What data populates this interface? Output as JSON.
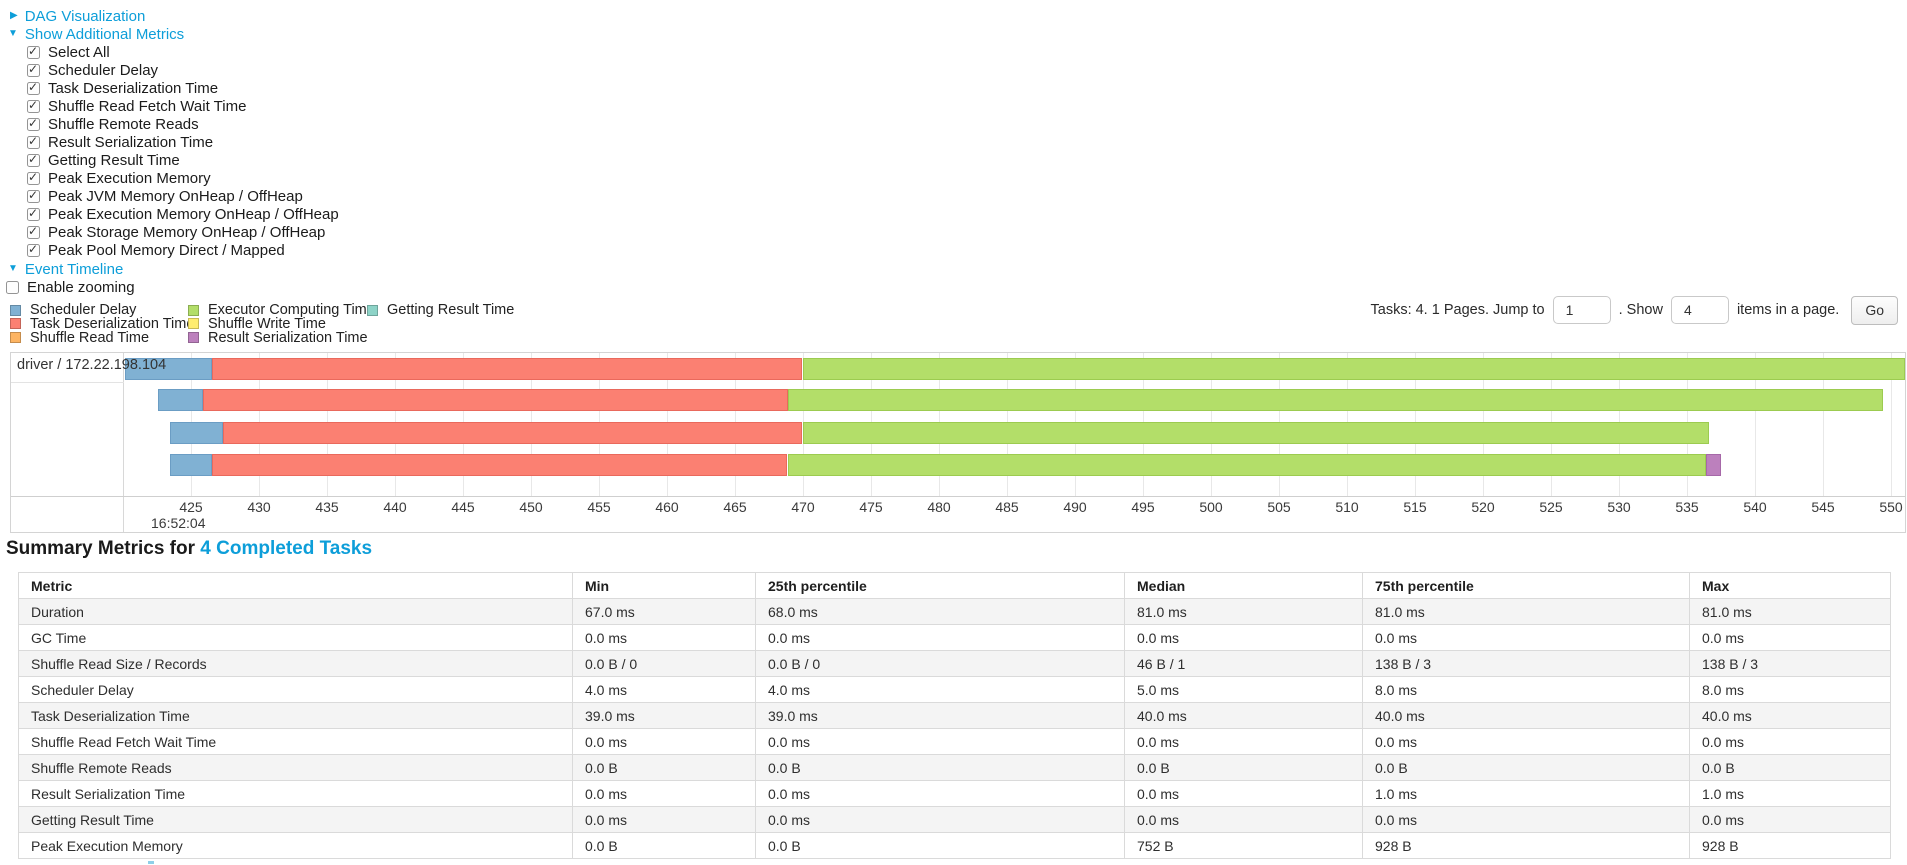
{
  "controls": {
    "dag": {
      "label": "DAG Visualization",
      "arrow": "▶"
    },
    "metrics": {
      "label": "Show Additional Metrics",
      "arrow": "▼",
      "items": [
        {
          "label": "Select All",
          "checked": true
        },
        {
          "label": "Scheduler Delay",
          "checked": true
        },
        {
          "label": "Task Deserialization Time",
          "checked": true
        },
        {
          "label": "Shuffle Read Fetch Wait Time",
          "checked": true
        },
        {
          "label": "Shuffle Remote Reads",
          "checked": true
        },
        {
          "label": "Result Serialization Time",
          "checked": true
        },
        {
          "label": "Getting Result Time",
          "checked": true
        },
        {
          "label": "Peak Execution Memory",
          "checked": true
        },
        {
          "label": "Peak JVM Memory OnHeap / OffHeap",
          "checked": true
        },
        {
          "label": "Peak Execution Memory OnHeap / OffHeap",
          "checked": true
        },
        {
          "label": "Peak Storage Memory OnHeap / OffHeap",
          "checked": true
        },
        {
          "label": "Peak Pool Memory Direct / Mapped",
          "checked": true
        }
      ]
    },
    "event_timeline": {
      "label": "Event Timeline",
      "arrow": "▼"
    },
    "enable_zooming": {
      "label": "Enable zooming",
      "checked": false
    }
  },
  "legend": {
    "columns": [
      {
        "items": [
          {
            "type": "scheduler_delay",
            "label": "Scheduler Delay"
          },
          {
            "type": "task_deserialization",
            "label": "Task Deserialization Time"
          },
          {
            "type": "shuffle_read",
            "label": "Shuffle Read Time"
          }
        ]
      },
      {
        "items": [
          {
            "type": "executor_computing",
            "label": "Executor Computing Time"
          },
          {
            "type": "shuffle_write",
            "label": "Shuffle Write Time"
          },
          {
            "type": "result_serialization",
            "label": "Result Serialization Time"
          }
        ]
      },
      {
        "items": [
          {
            "type": "getting_result",
            "label": "Getting Result Time"
          }
        ]
      }
    ]
  },
  "pagination": {
    "prefix": "Tasks: 4. 1 Pages. Jump to",
    "jump_value": "1",
    "mid": ". Show",
    "show_value": "4",
    "suffix": "items in a page.",
    "go_label": "Go"
  },
  "timeline": {
    "group_label": "driver / 172.22.198.104",
    "axis": {
      "min": 420.1,
      "max": 550.9,
      "tick_start": 425,
      "tick_end": 550,
      "tick_step": 5,
      "major_label": "16:52:04"
    },
    "colors": {
      "scheduler_delay": {
        "fill": "#80B1D3",
        "border": "#6B9DC4"
      },
      "task_deserialization": {
        "fill": "#FB8072",
        "border": "#E9695C"
      },
      "shuffle_read": {
        "fill": "#FDB462",
        "border": "#E89E4D"
      },
      "executor_computing": {
        "fill": "#B3DE69",
        "border": "#9CCB50"
      },
      "shuffle_write": {
        "fill": "#FFED6F",
        "border": "#E5D35A"
      },
      "result_serialization": {
        "fill": "#BC80BD",
        "border": "#A668A8"
      },
      "getting_result": {
        "fill": "#8DD3C7",
        "border": "#76BDB1"
      }
    },
    "tasks": [
      {
        "segments": [
          {
            "type": "scheduler_delay",
            "from": 420.2,
            "to": 426.6
          },
          {
            "type": "task_deserialization",
            "from": 426.6,
            "to": 470.0
          },
          {
            "type": "executor_computing",
            "from": 470.0,
            "to": 551.0
          }
        ]
      },
      {
        "segments": [
          {
            "type": "scheduler_delay",
            "from": 422.6,
            "to": 425.9
          },
          {
            "type": "task_deserialization",
            "from": 425.9,
            "to": 468.9
          },
          {
            "type": "executor_computing",
            "from": 468.9,
            "to": 549.4
          }
        ]
      },
      {
        "segments": [
          {
            "type": "scheduler_delay",
            "from": 423.5,
            "to": 427.4
          },
          {
            "type": "task_deserialization",
            "from": 427.4,
            "to": 470.0
          },
          {
            "type": "executor_computing",
            "from": 470.0,
            "to": 536.6
          }
        ]
      },
      {
        "segments": [
          {
            "type": "scheduler_delay",
            "from": 423.5,
            "to": 426.6
          },
          {
            "type": "task_deserialization",
            "from": 426.6,
            "to": 468.9
          },
          {
            "type": "executor_computing",
            "from": 468.9,
            "to": 536.4
          },
          {
            "type": "result_serialization",
            "from": 536.4,
            "to": 537.5
          }
        ]
      }
    ]
  },
  "summary": {
    "title_prefix": "Summary Metrics for ",
    "title_link": "4 Completed Tasks",
    "table": {
      "headers": [
        "Metric",
        "Min",
        "25th percentile",
        "Median",
        "75th percentile",
        "Max"
      ],
      "rows": [
        [
          "Duration",
          "67.0 ms",
          "68.0 ms",
          "81.0 ms",
          "81.0 ms",
          "81.0 ms"
        ],
        [
          "GC Time",
          "0.0 ms",
          "0.0 ms",
          "0.0 ms",
          "0.0 ms",
          "0.0 ms"
        ],
        [
          "Shuffle Read Size / Records",
          "0.0 B / 0",
          "0.0 B / 0",
          "46 B / 1",
          "138 B / 3",
          "138 B / 3"
        ],
        [
          "Scheduler Delay",
          "4.0 ms",
          "4.0 ms",
          "5.0 ms",
          "8.0 ms",
          "8.0 ms"
        ],
        [
          "Task Deserialization Time",
          "39.0 ms",
          "39.0 ms",
          "40.0 ms",
          "40.0 ms",
          "40.0 ms"
        ],
        [
          "Shuffle Read Fetch Wait Time",
          "0.0 ms",
          "0.0 ms",
          "0.0 ms",
          "0.0 ms",
          "0.0 ms"
        ],
        [
          "Shuffle Remote Reads",
          "0.0 B",
          "0.0 B",
          "0.0 B",
          "0.0 B",
          "0.0 B"
        ],
        [
          "Result Serialization Time",
          "0.0 ms",
          "0.0 ms",
          "0.0 ms",
          "1.0 ms",
          "1.0 ms"
        ],
        [
          "Getting Result Time",
          "0.0 ms",
          "0.0 ms",
          "0.0 ms",
          "0.0 ms",
          "0.0 ms"
        ],
        [
          "Peak Execution Memory",
          "0.0 B",
          "0.0 B",
          "752 B",
          "928 B",
          "928 B"
        ]
      ]
    }
  }
}
